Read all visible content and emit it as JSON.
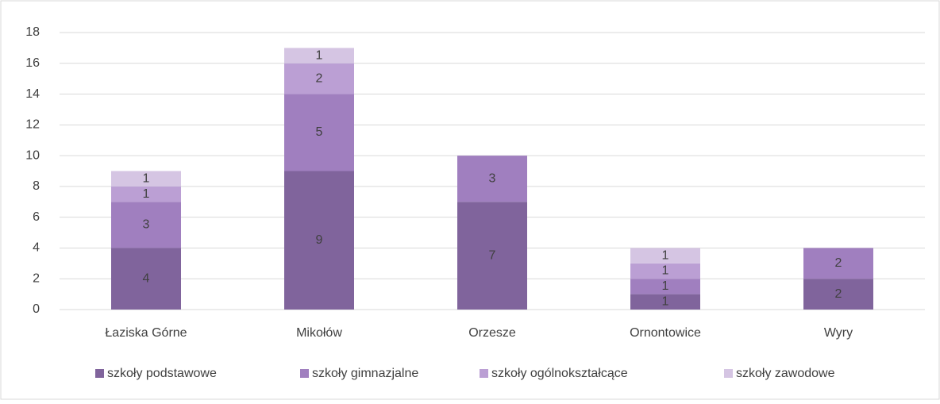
{
  "chart_data": {
    "type": "bar",
    "stacked": true,
    "categories": [
      "Łaziska Górne",
      "Mikołów",
      "Orzesze",
      "Ornontowice",
      "Wyry"
    ],
    "series": [
      {
        "name": "szkoły podstawowe",
        "color": "#80649c",
        "values": [
          4,
          9,
          7,
          1,
          2
        ]
      },
      {
        "name": "szkoły gimnazjalne",
        "color": "#a07fbf",
        "values": [
          3,
          5,
          3,
          1,
          2
        ]
      },
      {
        "name": "szkoły ogólnokształcące",
        "color": "#bb9fd4",
        "values": [
          1,
          2,
          null,
          1,
          null
        ]
      },
      {
        "name": "szkoły zawodowe",
        "color": "#d5c5e3",
        "values": [
          1,
          1,
          null,
          1,
          null
        ]
      }
    ],
    "ylim": [
      0,
      18
    ],
    "yticks": [
      0,
      2,
      4,
      6,
      8,
      10,
      12,
      14,
      16,
      18
    ],
    "grid": true,
    "legend": "bottom"
  }
}
